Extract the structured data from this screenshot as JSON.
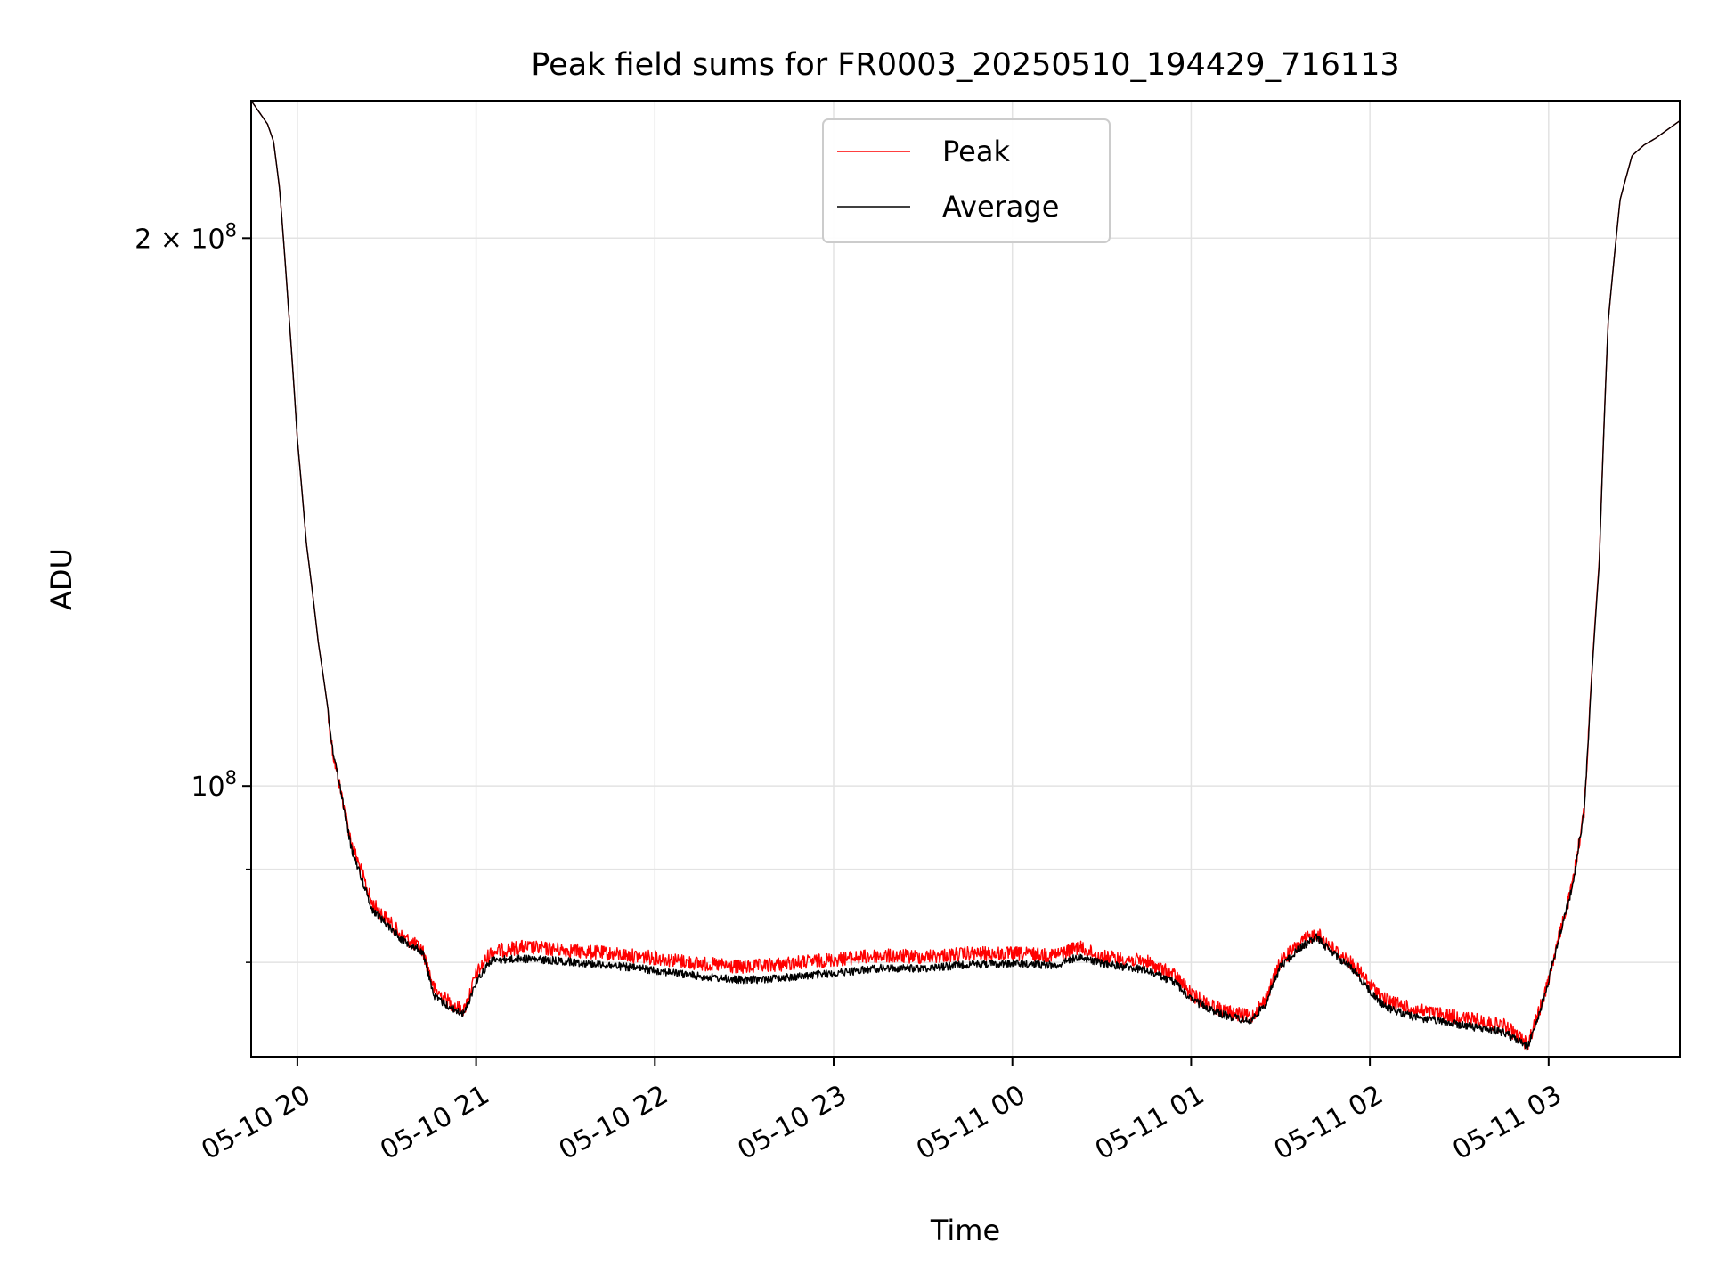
{
  "chart_data": {
    "type": "line",
    "title": "Peak field sums for FR0003_20250510_194429_716113",
    "xlabel": "Time",
    "ylabel": "ADU",
    "yscale": "log",
    "grid": true,
    "legend_position": "upper center",
    "x_range": [
      "2025-05-10 19:44:29",
      "2025-05-11 03:44:00"
    ],
    "ylim": [
      71000000,
      238000000
    ],
    "x_ticks": [
      {
        "time": "2025-05-10 20:00",
        "label": "05-10 20"
      },
      {
        "time": "2025-05-10 21:00",
        "label": "05-10 21"
      },
      {
        "time": "2025-05-10 22:00",
        "label": "05-10 22"
      },
      {
        "time": "2025-05-10 23:00",
        "label": "05-10 23"
      },
      {
        "time": "2025-05-11 00:00",
        "label": "05-11 00"
      },
      {
        "time": "2025-05-11 01:00",
        "label": "05-11 01"
      },
      {
        "time": "2025-05-11 02:00",
        "label": "05-11 02"
      },
      {
        "time": "2025-05-11 03:00",
        "label": "05-11 03"
      }
    ],
    "y_major_ticks": [
      {
        "value": 100000000,
        "base": "10",
        "exp": "8"
      },
      {
        "value": 200000000,
        "mult": "2 × ",
        "base": "10",
        "exp": "8"
      }
    ],
    "y_minor_ticks": [
      80000000,
      90000000
    ],
    "series": [
      {
        "name": "Peak",
        "color": "#ff0000",
        "noise": 0.018,
        "points": [
          [
            "2025-05-10 19:44:29",
            238000000
          ],
          [
            "2025-05-10 19:50",
            231000000
          ],
          [
            "2025-05-10 19:52",
            226000000
          ],
          [
            "2025-05-10 19:54",
            213000000
          ],
          [
            "2025-05-10 19:57",
            183000000
          ],
          [
            "2025-05-10 20:00",
            155000000
          ],
          [
            "2025-05-10 20:03",
            136000000
          ],
          [
            "2025-05-10 20:07",
            120000000
          ],
          [
            "2025-05-10 20:12",
            105000000
          ],
          [
            "2025-05-10 20:18",
            94000000
          ],
          [
            "2025-05-10 20:25",
            87000000
          ],
          [
            "2025-05-10 20:35",
            83500000
          ],
          [
            "2025-05-10 20:42",
            82000000
          ],
          [
            "2025-05-10 20:46",
            78000000
          ],
          [
            "2025-05-10 20:52",
            76500000
          ],
          [
            "2025-05-10 20:56",
            76000000
          ],
          [
            "2025-05-10 21:00",
            79500000
          ],
          [
            "2025-05-10 21:05",
            81800000
          ],
          [
            "2025-05-10 21:15",
            82300000
          ],
          [
            "2025-05-10 21:30",
            82000000
          ],
          [
            "2025-05-10 21:45",
            81600000
          ],
          [
            "2025-05-10 22:00",
            81200000
          ],
          [
            "2025-05-10 22:15",
            80600000
          ],
          [
            "2025-05-10 22:30",
            80200000
          ],
          [
            "2025-05-10 22:45",
            80600000
          ],
          [
            "2025-05-10 23:00",
            81000000
          ],
          [
            "2025-05-10 23:15",
            81400000
          ],
          [
            "2025-05-10 23:30",
            81300000
          ],
          [
            "2025-05-10 23:45",
            81600000
          ],
          [
            "2025-05-11 00:00",
            81600000
          ],
          [
            "2025-05-11 00:15",
            81500000
          ],
          [
            "2025-05-11 00:22",
            82300000
          ],
          [
            "2025-05-11 00:30",
            81300000
          ],
          [
            "2025-05-11 00:45",
            80800000
          ],
          [
            "2025-05-11 00:55",
            79300000
          ],
          [
            "2025-05-11 01:00",
            77500000
          ],
          [
            "2025-05-11 01:10",
            76000000
          ],
          [
            "2025-05-11 01:20",
            75300000
          ],
          [
            "2025-05-11 01:25",
            77000000
          ],
          [
            "2025-05-11 01:30",
            80800000
          ],
          [
            "2025-05-11 01:37",
            82800000
          ],
          [
            "2025-05-11 01:42",
            83800000
          ],
          [
            "2025-05-11 01:47",
            82300000
          ],
          [
            "2025-05-11 01:55",
            80300000
          ],
          [
            "2025-05-11 02:00",
            78500000
          ],
          [
            "2025-05-11 02:05",
            77000000
          ],
          [
            "2025-05-11 02:15",
            76000000
          ],
          [
            "2025-05-11 02:30",
            75300000
          ],
          [
            "2025-05-11 02:45",
            74500000
          ],
          [
            "2025-05-11 02:50",
            73500000
          ],
          [
            "2025-05-11 02:53",
            72800000
          ],
          [
            "2025-05-11 02:57",
            76000000
          ],
          [
            "2025-05-11 03:00",
            79000000
          ],
          [
            "2025-05-11 03:04",
            84000000
          ],
          [
            "2025-05-11 03:08",
            89000000
          ],
          [
            "2025-05-11 03:12",
            98000000
          ],
          [
            "2025-05-11 03:14",
            112000000
          ],
          [
            "2025-05-11 03:17",
            133000000
          ],
          [
            "2025-05-11 03:20",
            180000000
          ],
          [
            "2025-05-11 03:24",
            210000000
          ],
          [
            "2025-05-11 03:28",
            222000000
          ],
          [
            "2025-05-11 03:32",
            225000000
          ],
          [
            "2025-05-11 03:36",
            227000000
          ],
          [
            "2025-05-11 03:44",
            232000000
          ]
        ]
      },
      {
        "name": "Average",
        "color": "#000000",
        "noise": 0.01,
        "points": [
          [
            "2025-05-10 19:44:29",
            238000000
          ],
          [
            "2025-05-10 19:50",
            231000000
          ],
          [
            "2025-05-10 19:52",
            226000000
          ],
          [
            "2025-05-10 19:54",
            213000000
          ],
          [
            "2025-05-10 19:57",
            183000000
          ],
          [
            "2025-05-10 20:00",
            155000000
          ],
          [
            "2025-05-10 20:03",
            136000000
          ],
          [
            "2025-05-10 20:07",
            120000000
          ],
          [
            "2025-05-10 20:12",
            105000000
          ],
          [
            "2025-05-10 20:18",
            93000000
          ],
          [
            "2025-05-10 20:25",
            86000000
          ],
          [
            "2025-05-10 20:35",
            82800000
          ],
          [
            "2025-05-10 20:42",
            81500000
          ],
          [
            "2025-05-10 20:46",
            77000000
          ],
          [
            "2025-05-10 20:52",
            75800000
          ],
          [
            "2025-05-10 20:56",
            75300000
          ],
          [
            "2025-05-10 21:00",
            78500000
          ],
          [
            "2025-05-10 21:05",
            80600000
          ],
          [
            "2025-05-10 21:15",
            80800000
          ],
          [
            "2025-05-10 21:30",
            80500000
          ],
          [
            "2025-05-10 21:45",
            80100000
          ],
          [
            "2025-05-10 22:00",
            79600000
          ],
          [
            "2025-05-10 22:15",
            79000000
          ],
          [
            "2025-05-10 22:30",
            78600000
          ],
          [
            "2025-05-10 22:45",
            78900000
          ],
          [
            "2025-05-10 23:00",
            79300000
          ],
          [
            "2025-05-10 23:15",
            79800000
          ],
          [
            "2025-05-10 23:30",
            79800000
          ],
          [
            "2025-05-10 23:45",
            80200000
          ],
          [
            "2025-05-11 00:00",
            80300000
          ],
          [
            "2025-05-11 00:15",
            80100000
          ],
          [
            "2025-05-11 00:22",
            81000000
          ],
          [
            "2025-05-11 00:30",
            80300000
          ],
          [
            "2025-05-11 00:45",
            79600000
          ],
          [
            "2025-05-11 00:55",
            78300000
          ],
          [
            "2025-05-11 01:00",
            76700000
          ],
          [
            "2025-05-11 01:10",
            75300000
          ],
          [
            "2025-05-11 01:20",
            74600000
          ],
          [
            "2025-05-11 01:25",
            76300000
          ],
          [
            "2025-05-11 01:30",
            80000000
          ],
          [
            "2025-05-11 01:37",
            82000000
          ],
          [
            "2025-05-11 01:42",
            83000000
          ],
          [
            "2025-05-11 01:47",
            81500000
          ],
          [
            "2025-05-11 01:55",
            79500000
          ],
          [
            "2025-05-11 02:00",
            77500000
          ],
          [
            "2025-05-11 02:05",
            76000000
          ],
          [
            "2025-05-11 02:15",
            75000000
          ],
          [
            "2025-05-11 02:30",
            74300000
          ],
          [
            "2025-05-11 02:45",
            73600000
          ],
          [
            "2025-05-11 02:50",
            72800000
          ],
          [
            "2025-05-11 02:53",
            72200000
          ],
          [
            "2025-05-11 02:57",
            75500000
          ],
          [
            "2025-05-11 03:00",
            78600000
          ],
          [
            "2025-05-11 03:04",
            83500000
          ],
          [
            "2025-05-11 03:08",
            88500000
          ],
          [
            "2025-05-11 03:12",
            97500000
          ],
          [
            "2025-05-11 03:14",
            111500000
          ],
          [
            "2025-05-11 03:17",
            132500000
          ],
          [
            "2025-05-11 03:20",
            180000000
          ],
          [
            "2025-05-11 03:24",
            210000000
          ],
          [
            "2025-05-11 03:28",
            222000000
          ],
          [
            "2025-05-11 03:32",
            225000000
          ],
          [
            "2025-05-11 03:36",
            227000000
          ],
          [
            "2025-05-11 03:44",
            232000000
          ]
        ]
      }
    ]
  }
}
